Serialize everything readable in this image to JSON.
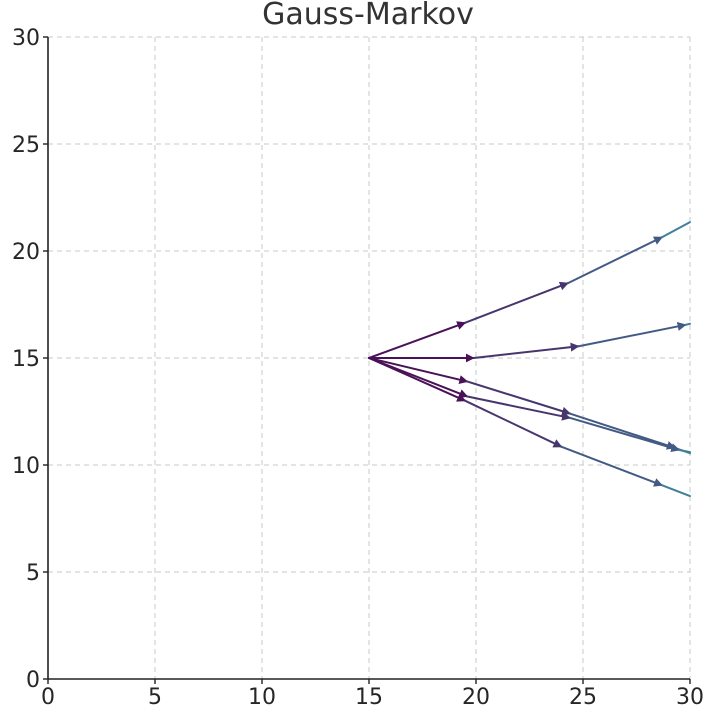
{
  "chart_data": {
    "type": "line",
    "title": "Gauss-Markov",
    "xlabel": "",
    "ylabel": "",
    "xlim": [
      0,
      30
    ],
    "ylim": [
      0,
      30
    ],
    "xticks": [
      "0",
      "5",
      "10",
      "15",
      "20",
      "25",
      "30"
    ],
    "yticks": [
      "0",
      "5",
      "10",
      "15",
      "20",
      "25",
      "30"
    ],
    "grid": true,
    "origin": [
      15,
      15
    ],
    "color_start": "#4b1158",
    "color_end": "#3f7f9b",
    "series": [
      {
        "points": [
          [
            15,
            15
          ],
          [
            19.5,
            16.65
          ],
          [
            24.3,
            18.5
          ],
          [
            28.7,
            20.65
          ],
          [
            30,
            21.35
          ]
        ]
      },
      {
        "points": [
          [
            15,
            15
          ],
          [
            19.9,
            15.0
          ],
          [
            24.8,
            15.55
          ],
          [
            29.8,
            16.55
          ],
          [
            30,
            16.6
          ]
        ]
      },
      {
        "points": [
          [
            15,
            15
          ],
          [
            19.6,
            13.9
          ],
          [
            24.4,
            12.4
          ],
          [
            29.3,
            10.8
          ],
          [
            30,
            10.55
          ]
        ]
      },
      {
        "points": [
          [
            15,
            15
          ],
          [
            19.6,
            13.2
          ],
          [
            24.4,
            12.2
          ],
          [
            29.5,
            10.7
          ],
          [
            30,
            10.6
          ]
        ]
      },
      {
        "points": [
          [
            15,
            15
          ],
          [
            19.5,
            13.0
          ],
          [
            24.0,
            10.85
          ],
          [
            28.7,
            9.05
          ],
          [
            30,
            8.55
          ]
        ]
      }
    ]
  }
}
